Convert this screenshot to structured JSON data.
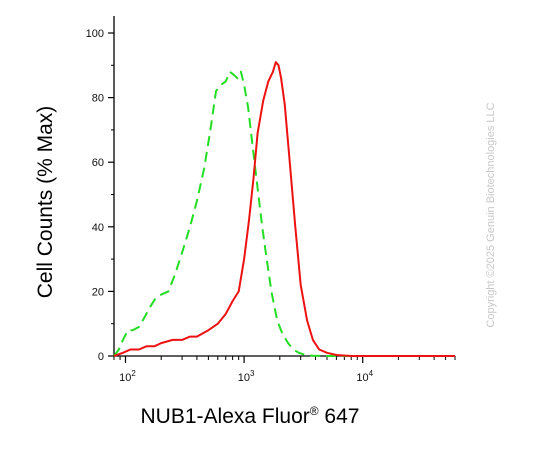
{
  "chart_data": {
    "type": "line",
    "xlabel": "NUB1-Alexa Fluor® 647",
    "ylabel": "Cell Counts (% Max)",
    "x_scale": "log",
    "xlim": [
      80,
      60000
    ],
    "ylim": [
      0,
      100
    ],
    "yticks": [
      0,
      20,
      40,
      60,
      80,
      100
    ],
    "xticks": [
      {
        "value": 100,
        "base": "10",
        "exp": "2"
      },
      {
        "value": 1000,
        "base": "10",
        "exp": "3"
      },
      {
        "value": 10000,
        "base": "10",
        "exp": "4"
      }
    ],
    "grid": false,
    "legend": "none",
    "series": [
      {
        "color": "#22dd22",
        "style": "dashed",
        "x": [
          80,
          88,
          95,
          105,
          115,
          130,
          145,
          160,
          180,
          200,
          230,
          260,
          300,
          350,
          400,
          460,
          520,
          580,
          640,
          700,
          760,
          820,
          880,
          940,
          1000,
          1080,
          1180,
          1300,
          1420,
          1550,
          1700,
          1900,
          2100,
          2350,
          2600,
          2900,
          3300,
          3800,
          5000,
          60000
        ],
        "y": [
          0,
          2,
          5,
          8,
          8,
          9,
          12,
          15,
          18,
          19,
          20,
          25,
          32,
          40,
          48,
          58,
          70,
          82,
          84,
          85,
          88,
          87,
          86,
          88,
          84,
          77,
          65,
          52,
          40,
          30,
          20,
          11,
          7,
          4,
          2,
          1,
          0.3,
          0.1,
          0,
          0
        ]
      },
      {
        "color": "#ee1111",
        "style": "solid",
        "x": [
          80,
          95,
          110,
          130,
          150,
          175,
          200,
          250,
          300,
          350,
          400,
          500,
          600,
          700,
          800,
          900,
          1000,
          1100,
          1200,
          1300,
          1450,
          1600,
          1750,
          1850,
          1950,
          2050,
          2200,
          2400,
          2700,
          3000,
          3400,
          3800,
          4300,
          5000,
          6000,
          8000,
          12000,
          60000
        ],
        "y": [
          0,
          1,
          2,
          2,
          3,
          3,
          4,
          5,
          5,
          6,
          6,
          8,
          10,
          13,
          17,
          20,
          30,
          42,
          55,
          69,
          79,
          85,
          88,
          91,
          90,
          86,
          78,
          62,
          40,
          22,
          11,
          5,
          2,
          1,
          0.3,
          0,
          0,
          0
        ]
      }
    ]
  },
  "watermark": "Copyright ©2025 Genuin Biotechnologies LLC"
}
